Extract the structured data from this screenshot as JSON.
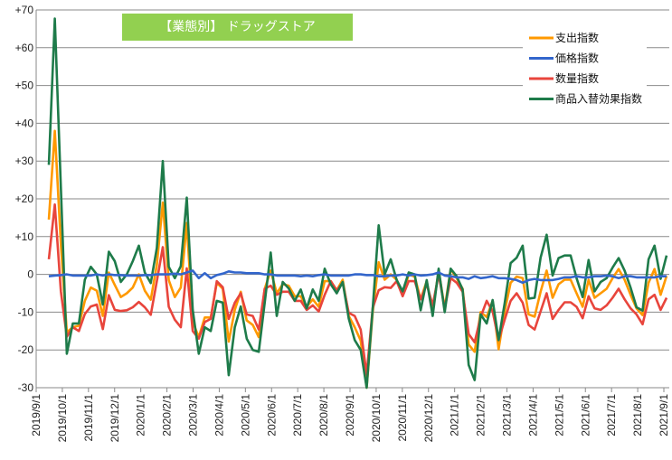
{
  "chart_data": {
    "type": "line",
    "title": "【業態別】 ドラッグストア",
    "xlabel": "",
    "ylabel": "",
    "ylim": [
      -30,
      70
    ],
    "ytick_step": 10,
    "yticks": [
      "+70",
      "+60",
      "+50",
      "+40",
      "+30",
      "+20",
      "+10",
      "0",
      "-10",
      "-20",
      "-30"
    ],
    "grid": true,
    "legend_position": "top-right",
    "x_tick_labels": [
      "2019/9/1",
      "2019/10/1",
      "2019/11/1",
      "2019/12/1",
      "2020/1/1",
      "2020/2/1",
      "2020/3/1",
      "2020/4/1",
      "2020/5/1",
      "2020/6/1",
      "2020/7/1",
      "2020/8/1",
      "2020/9/1",
      "2020/10/1",
      "2020/11/1",
      "2020/12/1",
      "2021/1/1",
      "2021/2/1",
      "2021/3/1",
      "2021/4/1",
      "2021/5/1",
      "2021/6/1",
      "2021/7/1",
      "2021/8/1",
      "2021/9/1"
    ],
    "x_frequency": "weekly",
    "series": [
      {
        "name": "支出指数",
        "color": "#FF9900",
        "values": [
          14.5,
          38,
          8,
          -15.3,
          -14,
          -13.6,
          -7,
          -3.5,
          -4.3,
          -11,
          0.5,
          -2.8,
          -6,
          -5,
          -3.5,
          0,
          -4.3,
          -6.7,
          2.5,
          19,
          -1.5,
          -6,
          -3.5,
          13.6,
          -12.6,
          -16.6,
          -11.4,
          -11.4,
          -2.2,
          -3.8,
          -17.8,
          -9.4,
          -4.6,
          -12.2,
          -13.4,
          -16.6,
          -3.8,
          1,
          -5,
          -2.6,
          -3,
          -5.8,
          -5.8,
          -8.6,
          -6.6,
          -8.6,
          -1.8,
          -1.8,
          -4.2,
          -1.4,
          -11,
          -14,
          -17.5,
          -30,
          -10,
          3.2,
          -1.4,
          0,
          -1.4,
          -5.4,
          0,
          -0.6,
          -6.6,
          -1.8,
          -9.8,
          1,
          -9,
          1.4,
          -1,
          -3.8,
          -18.6,
          -20.5,
          -10,
          -11.3,
          -7,
          -19.8,
          -9.8,
          -2.2,
          -0.6,
          -1,
          -10.6,
          -11.2,
          -4.6,
          1,
          -6.2,
          -2.6,
          -1.4,
          -1.4,
          -5,
          -8.6,
          -1.4,
          -6.2,
          -5,
          -3.8,
          -1,
          1.4,
          -1.4,
          -5.4,
          -9,
          -10.8,
          -2.2,
          1.4,
          -5.4,
          -0.4
        ]
      },
      {
        "name": "価格指数",
        "color": "#3366CC",
        "values": [
          -0.5,
          -0.3,
          -0.2,
          0,
          -0.3,
          -0.3,
          -0.3,
          -0.3,
          0,
          -0.3,
          0,
          -0.2,
          -0.2,
          -0.3,
          -0.3,
          -0.3,
          -0.2,
          -0.2,
          0,
          0,
          0,
          0.2,
          0,
          0.5,
          1,
          -1,
          0.3,
          -1,
          -0.2,
          0.2,
          0.8,
          0.5,
          0.5,
          0.3,
          0.3,
          0.3,
          0,
          0,
          -0.3,
          -0.3,
          -0.3,
          -0.3,
          -0.5,
          -0.3,
          -0.5,
          -0.2,
          0,
          -0.3,
          -0.3,
          -0.3,
          -0.3,
          0,
          0,
          -0.2,
          -0.2,
          -0.5,
          -0.5,
          -0.3,
          -0.3,
          0,
          -0.3,
          0,
          -0.3,
          -0.2,
          0,
          0.5,
          -0.3,
          -0.5,
          -0.8,
          -0.8,
          -1.2,
          -0.5,
          -1,
          -0.8,
          -0.5,
          -1,
          -1,
          -1.2,
          -1.5,
          -2.2,
          -1.5,
          -1.2,
          -1.5,
          -1.5,
          -1.5,
          -1.2,
          -0.8,
          -0.8,
          -0.5,
          -0.8,
          -0.8,
          -0.5,
          -0.5,
          -0.3,
          -0.5,
          -1,
          -0.5,
          -0.5,
          -0.8,
          -0.8,
          -0.8,
          -0.8,
          -0.5,
          -0.5
        ]
      },
      {
        "name": "数量指数",
        "color": "#E8453C",
        "values": [
          4,
          18.5,
          -4.5,
          -16.5,
          -14,
          -15,
          -10.5,
          -8.5,
          -8,
          -14.5,
          -5.5,
          -9.4,
          -9.7,
          -9.5,
          -8.7,
          -7.3,
          -8.7,
          -10.7,
          -1.8,
          7.2,
          -8.6,
          -12,
          -14,
          1.6,
          -15,
          -17,
          -12.6,
          -11.8,
          -1.8,
          -3.4,
          -11.8,
          -7.5,
          -5,
          -10.6,
          -11,
          -14.6,
          -3.8,
          -3,
          -5.4,
          -4.6,
          -4.6,
          -7,
          -7,
          -9.4,
          -8.2,
          -9.8,
          -5.4,
          -1.8,
          -4.2,
          -2.2,
          -10.2,
          -11,
          -14.6,
          -26.5,
          -8.9,
          -4.2,
          -3.4,
          -3.6,
          -1.8,
          -5.8,
          -1.8,
          -1.8,
          -6.6,
          -2.6,
          -8.2,
          0,
          -9,
          -1,
          -2.2,
          -4.6,
          -15.8,
          -18,
          -11.3,
          -7,
          -9.8,
          -17.4,
          -12,
          -7,
          -5,
          -7.5,
          -13.4,
          -14.6,
          -9.8,
          -5,
          -11.8,
          -9.4,
          -7.4,
          -7.4,
          -8.6,
          -11.6,
          -5.8,
          -9,
          -9.4,
          -8.2,
          -6.2,
          -3.8,
          -6.6,
          -9,
          -10.6,
          -13.2,
          -6.6,
          -5.4,
          -9.4,
          -6.2
        ]
      },
      {
        "name": "商品入替効果指数",
        "color": "#1E7B4A",
        "values": [
          29,
          67.7,
          23,
          -21,
          -13,
          -13,
          -1.4,
          2,
          0,
          -8,
          6,
          3.5,
          -2,
          0,
          3.5,
          7.6,
          0.5,
          -2.3,
          7,
          30,
          2,
          -1,
          2.2,
          20.3,
          -9.4,
          -21,
          -14,
          -15,
          -7,
          -7.5,
          -26.7,
          -14,
          -8.5,
          -17,
          -20,
          -20.5,
          -7.5,
          5.8,
          -11,
          -2,
          -3.7,
          -7,
          -4,
          -9,
          -4,
          -7,
          1.5,
          -2.6,
          -5,
          -2,
          -11.7,
          -17.4,
          -20,
          -30,
          -9,
          13,
          0,
          4,
          -1.5,
          -4.5,
          0.5,
          0,
          -9.5,
          -1.5,
          -11,
          1.5,
          -10,
          1.5,
          -0.5,
          -4,
          -24,
          -28,
          -10.6,
          -13,
          -6.8,
          -17.4,
          -7.6,
          3,
          4.4,
          7.6,
          -6.4,
          -6.2,
          4.4,
          10.5,
          -0.3,
          4.3,
          5,
          5,
          -1,
          -6,
          3.8,
          -4.5,
          -2,
          -1,
          1.8,
          4.3,
          1,
          -3.5,
          -8.7,
          -9.6,
          4,
          7.6,
          -1.2,
          5
        ]
      }
    ]
  }
}
